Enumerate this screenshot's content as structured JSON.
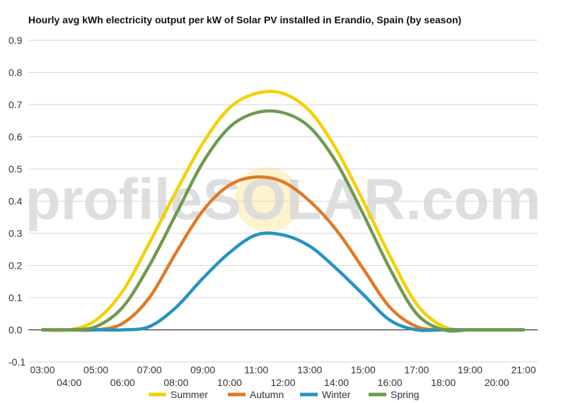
{
  "chart_data": {
    "type": "line",
    "title": "Hourly avg kWh electricity output per kW of Solar PV installed in Erandio, Spain (by season)",
    "watermark": "profileSOLAR.com",
    "x": [
      "03:00",
      "04:00",
      "05:00",
      "06:00",
      "07:00",
      "08:00",
      "09:00",
      "10:00",
      "11:00",
      "12:00",
      "13:00",
      "14:00",
      "15:00",
      "16:00",
      "17:00",
      "18:00",
      "19:00",
      "20:00",
      "21:00"
    ],
    "ylim": [
      -0.1,
      0.9
    ],
    "yticks": [
      "0.9",
      "0.8",
      "0.7",
      "0.6",
      "0.5",
      "0.4",
      "0.3",
      "0.2",
      "0.1",
      "0.0",
      "-0.1"
    ],
    "grid": true,
    "legend_position": "bottom",
    "series": [
      {
        "name": "Summer",
        "color": "#f5d000",
        "values": [
          0,
          0,
          0.03,
          0.12,
          0.27,
          0.43,
          0.58,
          0.69,
          0.735,
          0.735,
          0.68,
          0.56,
          0.4,
          0.23,
          0.08,
          0.01,
          0,
          0,
          0
        ]
      },
      {
        "name": "Autumn",
        "color": "#e07a26",
        "values": [
          0,
          0,
          0,
          0.02,
          0.1,
          0.24,
          0.37,
          0.45,
          0.475,
          0.46,
          0.4,
          0.31,
          0.19,
          0.07,
          0.01,
          0,
          0,
          0,
          0
        ]
      },
      {
        "name": "Winter",
        "color": "#2693c3",
        "values": [
          0,
          0,
          0,
          0,
          0.01,
          0.07,
          0.16,
          0.24,
          0.295,
          0.295,
          0.26,
          0.19,
          0.11,
          0.03,
          0,
          0,
          0,
          0,
          0
        ]
      },
      {
        "name": "Spring",
        "color": "#6f9a4f",
        "values": [
          0,
          0,
          0.01,
          0.07,
          0.2,
          0.36,
          0.52,
          0.63,
          0.675,
          0.675,
          0.63,
          0.52,
          0.36,
          0.19,
          0.05,
          0,
          0,
          0,
          0
        ]
      }
    ]
  }
}
